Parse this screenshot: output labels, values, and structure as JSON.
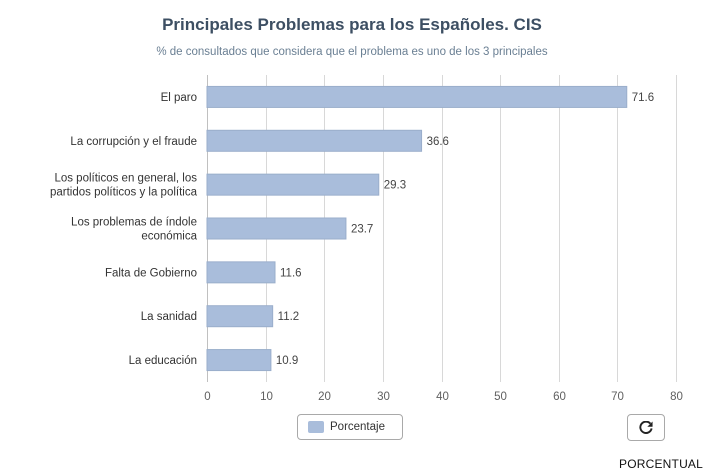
{
  "colors": {
    "bar": "#a9bddb",
    "bar_stroke": "#9aaecb",
    "title": "#3d4f63",
    "subtitle": "#6a7f93"
  },
  "chart_data": {
    "type": "bar",
    "orientation": "horizontal",
    "title": "Principales Problemas para los Españoles. CIS",
    "subtitle": "% de consultados que considera que el problema es uno de los 3 principales",
    "categories": [
      [
        "El paro"
      ],
      [
        "La corrupción y el fraude"
      ],
      [
        "Los políticos en general, los",
        "partidos políticos y la política"
      ],
      [
        "Los problemas de índole",
        "económica"
      ],
      [
        "Falta de Gobierno"
      ],
      [
        "La sanidad"
      ],
      [
        "La educación"
      ]
    ],
    "series": [
      {
        "name": "Porcentaje",
        "values": [
          71.6,
          36.6,
          29.3,
          23.7,
          11.6,
          11.2,
          10.9
        ]
      }
    ],
    "xlim": [
      0,
      80
    ],
    "xticks": [
      0,
      10,
      20,
      30,
      40,
      50,
      60,
      70,
      80
    ],
    "grid": true,
    "legend": "bottom-center"
  },
  "legend": {
    "label": "Porcentaje"
  },
  "reset_icon": "refresh-icon",
  "source": "PORCENTUAL"
}
